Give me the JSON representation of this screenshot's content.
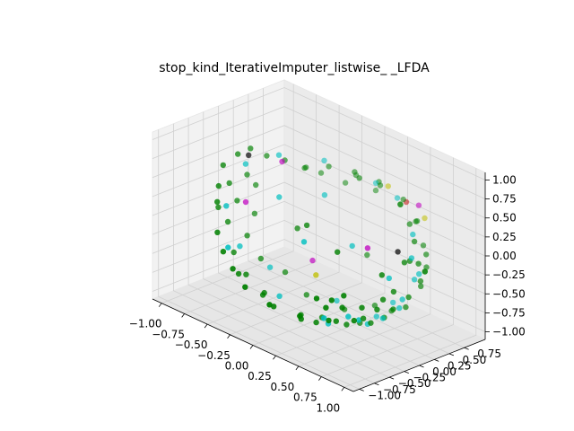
{
  "chart_data": {
    "type": "scatter",
    "title": "stop_kind_IterativeImputer_listwise_ _LFDA",
    "xlabel": "",
    "ylabel": "",
    "zlabel": "",
    "xlim": [
      -1.1,
      1.1
    ],
    "ylim": [
      -1.1,
      1.1
    ],
    "zlim": [
      -1.1,
      1.1
    ],
    "x_ticks": [
      "−1.00",
      "−0.75",
      "−0.50",
      "−0.25",
      "0.00",
      "0.25",
      "0.50",
      "0.75",
      "1.00"
    ],
    "y_ticks": [
      "−1.00",
      "−0.75",
      "−0.50",
      "−0.25",
      "0.00",
      "0.25",
      "0.50",
      "0.75"
    ],
    "z_ticks": [
      "−1.00",
      "−0.75",
      "−0.50",
      "−0.25",
      "0.00",
      "0.25",
      "0.50",
      "0.75",
      "1.00"
    ],
    "grid": true,
    "projection": "3d",
    "series": [
      {
        "color": "#008000",
        "points": [
          [
            -0.95,
            -0.15,
            0.45
          ],
          [
            -0.92,
            0.05,
            0.55
          ],
          [
            -0.9,
            -0.3,
            0.25
          ],
          [
            -0.88,
            0.2,
            0.6
          ],
          [
            -0.85,
            -0.4,
            0.1
          ],
          [
            -0.8,
            0.35,
            0.5
          ],
          [
            -0.75,
            -0.55,
            -0.2
          ],
          [
            -0.7,
            0.5,
            0.45
          ],
          [
            -0.62,
            -0.65,
            -0.35
          ],
          [
            -0.55,
            0.6,
            0.4
          ],
          [
            -0.45,
            -0.75,
            -0.45
          ],
          [
            -0.35,
            0.7,
            0.5
          ],
          [
            -0.25,
            -0.85,
            -0.55
          ],
          [
            -0.1,
            0.75,
            0.55
          ],
          [
            0.05,
            -0.9,
            -0.6
          ],
          [
            0.2,
            0.72,
            0.55
          ],
          [
            0.35,
            -0.85,
            -0.6
          ],
          [
            0.5,
            0.6,
            0.5
          ],
          [
            0.6,
            -0.75,
            -0.55
          ],
          [
            0.7,
            0.45,
            0.4
          ],
          [
            0.78,
            -0.6,
            -0.5
          ],
          [
            0.85,
            0.3,
            0.3
          ],
          [
            0.9,
            -0.4,
            -0.35
          ],
          [
            0.93,
            0.1,
            0.15
          ],
          [
            0.95,
            -0.2,
            -0.15
          ],
          [
            -0.96,
            0.1,
            -0.1
          ],
          [
            -0.9,
            0.3,
            -0.3
          ],
          [
            -0.85,
            0.1,
            -0.5
          ],
          [
            -0.8,
            -0.2,
            -0.6
          ],
          [
            -0.7,
            0.1,
            -0.72
          ],
          [
            -0.6,
            -0.3,
            -0.75
          ],
          [
            -0.5,
            0.2,
            -0.82
          ],
          [
            -0.35,
            -0.4,
            -0.85
          ],
          [
            -0.2,
            0.1,
            -0.92
          ],
          [
            0.0,
            -0.3,
            -0.95
          ],
          [
            0.15,
            0.2,
            -0.95
          ],
          [
            0.3,
            -0.5,
            -0.82
          ],
          [
            0.45,
            0.0,
            -0.9
          ],
          [
            0.55,
            -0.55,
            -0.65
          ],
          [
            0.65,
            0.1,
            -0.75
          ],
          [
            0.75,
            -0.4,
            -0.55
          ],
          [
            0.82,
            0.2,
            -0.55
          ],
          [
            0.88,
            -0.1,
            -0.45
          ],
          [
            0.92,
            0.3,
            -0.25
          ],
          [
            0.95,
            0.05,
            -0.3
          ],
          [
            -0.5,
            0.8,
            0.3
          ],
          [
            -0.3,
            0.9,
            0.25
          ],
          [
            0.0,
            0.95,
            0.3
          ],
          [
            0.3,
            0.9,
            0.3
          ],
          [
            0.55,
            0.78,
            0.25
          ],
          [
            -0.6,
            0.7,
            0.35
          ],
          [
            -0.15,
            0.85,
            0.45
          ],
          [
            0.1,
            0.85,
            0.5
          ],
          [
            0.4,
            0.8,
            0.45
          ],
          [
            0.65,
            0.65,
            0.35
          ],
          [
            -0.4,
            -0.3,
            -0.88
          ],
          [
            0.2,
            -0.6,
            -0.8
          ],
          [
            0.5,
            -0.3,
            -0.8
          ],
          [
            0.7,
            -0.2,
            -0.7
          ],
          [
            0.8,
            -0.5,
            -0.35
          ],
          [
            0.6,
            0.3,
            -0.75
          ],
          [
            0.35,
            0.4,
            -0.85
          ],
          [
            0.1,
            -0.1,
            -0.99
          ],
          [
            -0.1,
            -0.6,
            -0.8
          ],
          [
            -0.55,
            -0.5,
            -0.65
          ],
          [
            0.88,
            0.45,
            0.1
          ],
          [
            0.9,
            0.4,
            -0.1
          ],
          [
            0.85,
            0.5,
            -0.1
          ],
          [
            0.92,
            -0.35,
            0.1
          ],
          [
            0.96,
            0.2,
            0.1
          ],
          [
            0.97,
            -0.05,
            0.2
          ],
          [
            0.95,
            0.25,
            -0.15
          ],
          [
            0.9,
            -0.3,
            -0.25
          ],
          [
            0.8,
            0.55,
            -0.2
          ],
          [
            0.75,
            0.6,
            0.1
          ],
          [
            -0.98,
            0.0,
            0.15
          ],
          [
            -0.97,
            -0.2,
            -0.1
          ],
          [
            -0.95,
            0.25,
            0.2
          ],
          [
            -0.93,
            -0.1,
            -0.3
          ],
          [
            -0.92,
            0.35,
            0.05
          ],
          [
            0.0,
            -0.2,
            0.2
          ],
          [
            0.2,
            0.5,
            -0.3
          ],
          [
            -0.3,
            0.1,
            -0.1
          ],
          [
            0.4,
            -0.3,
            0.1
          ],
          [
            0.05,
            0.6,
            0.6
          ],
          [
            0.6,
            -0.7,
            -0.3
          ],
          [
            0.7,
            -0.65,
            -0.2
          ],
          [
            0.5,
            -0.8,
            -0.3
          ],
          [
            0.65,
            -0.6,
            -0.4
          ],
          [
            0.55,
            -0.72,
            -0.42
          ]
        ]
      },
      {
        "color": "#00bfbf",
        "points": [
          [
            -0.9,
            0.15,
            0.4
          ],
          [
            -0.85,
            -0.25,
            0.0
          ],
          [
            -0.7,
            0.4,
            0.55
          ],
          [
            -0.6,
            -0.6,
            -0.3
          ],
          [
            -0.4,
            0.7,
            0.55
          ],
          [
            0.1,
            0.8,
            0.5
          ],
          [
            0.4,
            0.7,
            0.5
          ],
          [
            0.8,
            0.35,
            0.35
          ],
          [
            0.9,
            -0.2,
            0.0
          ],
          [
            0.85,
            0.1,
            -0.4
          ],
          [
            0.7,
            -0.4,
            -0.6
          ],
          [
            0.5,
            0.2,
            -0.85
          ],
          [
            0.3,
            -0.3,
            -0.9
          ],
          [
            0.0,
            0.3,
            -0.95
          ],
          [
            -0.3,
            -0.2,
            -0.9
          ],
          [
            -0.6,
            0.1,
            -0.78
          ],
          [
            -0.8,
            -0.1,
            -0.55
          ],
          [
            0.6,
            -0.1,
            -0.8
          ],
          [
            0.75,
            0.2,
            -0.6
          ],
          [
            0.95,
            0.1,
            0.2
          ],
          [
            0.9,
            0.3,
            -0.1
          ],
          [
            0.65,
            -0.5,
            -0.55
          ],
          [
            0.45,
            -0.6,
            -0.65
          ],
          [
            -0.2,
            0.4,
            0.3
          ],
          [
            0.3,
            0.1,
            0.0
          ],
          [
            0.1,
            -0.4,
            0.1
          ],
          [
            -0.5,
            0.1,
            0.2
          ],
          [
            0.85,
            0.3,
            -0.2
          ],
          [
            0.7,
            0.0,
            -0.7
          ],
          [
            0.55,
            0.4,
            -0.7
          ]
        ]
      },
      {
        "color": "#bf00bf",
        "points": [
          [
            -0.6,
            0.3,
            0.55
          ],
          [
            -0.8,
            0.0,
            0.0
          ],
          [
            0.6,
            -0.1,
            0.2
          ],
          [
            -0.2,
            0.2,
            -0.5
          ],
          [
            0.7,
            0.6,
            0.6
          ]
        ]
      },
      {
        "color": "#bfbf00",
        "points": [
          [
            0.3,
            0.7,
            0.6
          ],
          [
            0.7,
            0.7,
            0.4
          ],
          [
            0.1,
            -0.2,
            -0.4
          ]
        ]
      },
      {
        "color": "#bf0000",
        "points": [
          [
            0.4,
            0.85,
            0.4
          ]
        ]
      },
      {
        "color": "#000000",
        "points": [
          [
            -0.9,
            0.2,
            0.5
          ],
          [
            0.8,
            0.1,
            0.2
          ]
        ]
      }
    ]
  }
}
